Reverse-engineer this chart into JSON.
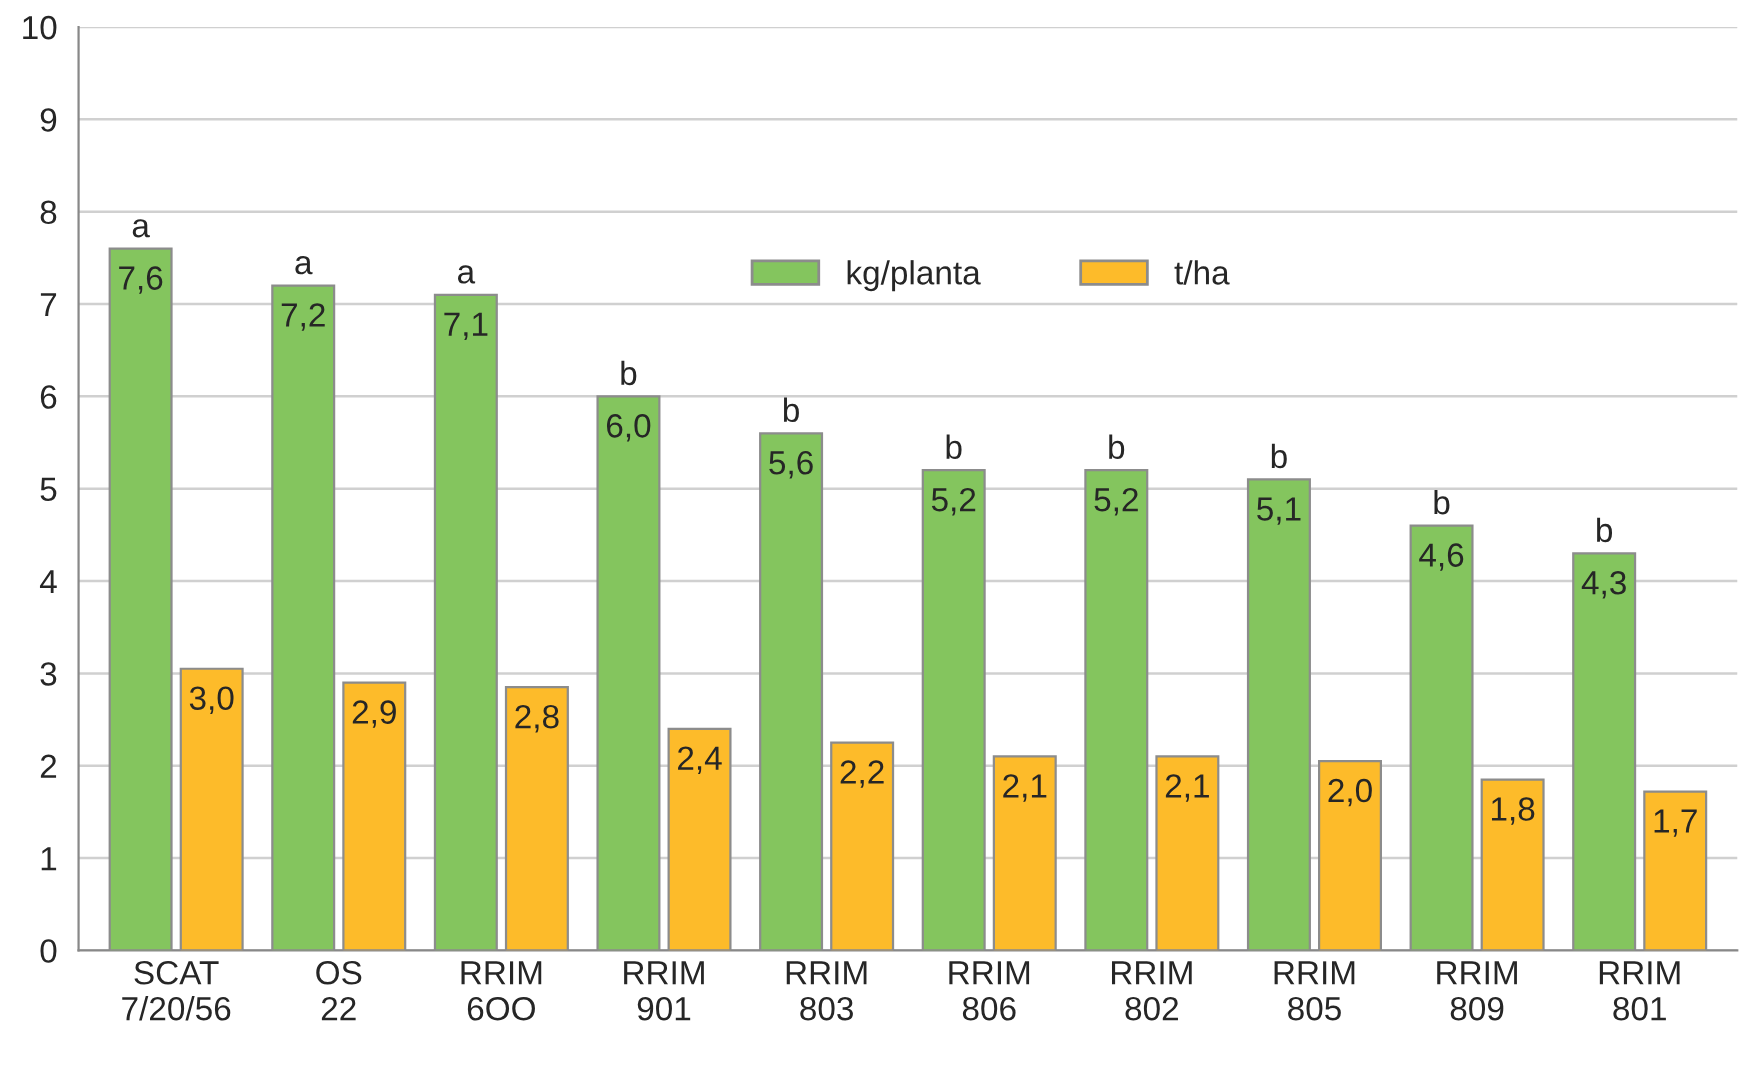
{
  "chart_data": {
    "type": "bar",
    "categories": [
      "SCAT\n7/20/56",
      "OS\n22",
      "RRIM\n6OO",
      "RRIM\n901",
      "RRIM\n803",
      "RRIM\n806",
      "RRIM\n802",
      "RRIM\n805",
      "RRIM\n809",
      "RRIM\n801"
    ],
    "series": [
      {
        "name": "kg/planta",
        "color": "#84c55e",
        "values": [
          7.6,
          7.2,
          7.1,
          6.0,
          5.6,
          5.2,
          5.2,
          5.1,
          4.6,
          4.3
        ],
        "value_labels": [
          "7,6",
          "7,2",
          "7,1",
          "6,0",
          "5,6",
          "5,2",
          "5,2",
          "5,1",
          "4,6",
          "4,3"
        ]
      },
      {
        "name": "t/ha",
        "color": "#fdbb2a",
        "values": [
          3.05,
          2.9,
          2.85,
          2.4,
          2.25,
          2.1,
          2.1,
          2.05,
          1.85,
          1.72
        ],
        "value_labels": [
          "3,0",
          "2,9",
          "2,8",
          "2,4",
          "2,2",
          "2,1",
          "2,1",
          "2,0",
          "1,8",
          "1,7"
        ]
      }
    ],
    "ylim": [
      0,
      10
    ],
    "yticks": [
      0,
      1,
      2,
      3,
      4,
      5,
      6,
      7,
      8,
      9,
      10
    ],
    "grid": "y",
    "legend": "top",
    "annotations": [
      {
        "text": "a",
        "x": "SCAT\n7/20/56",
        "y": 7.6
      },
      {
        "text": "a",
        "x": "OS\n22",
        "y": 7.2
      },
      {
        "text": "a",
        "x": "RRIM\n6OO",
        "y": 7.1
      },
      {
        "text": "b",
        "x": "RRIM\n901",
        "y": 6.0
      },
      {
        "text": "b",
        "x": "RRIM\n803",
        "y": 5.6
      },
      {
        "text": "b",
        "x": "RRIM\n806",
        "y": 5.2
      },
      {
        "text": "b",
        "x": "RRIM\n802",
        "y": 5.2
      },
      {
        "text": "b",
        "x": "RRIM\n805",
        "y": 5.1
      },
      {
        "text": "b",
        "x": "RRIM\n809",
        "y": 4.6
      },
      {
        "text": "b",
        "x": "RRIM\n801",
        "y": 4.3
      }
    ]
  }
}
